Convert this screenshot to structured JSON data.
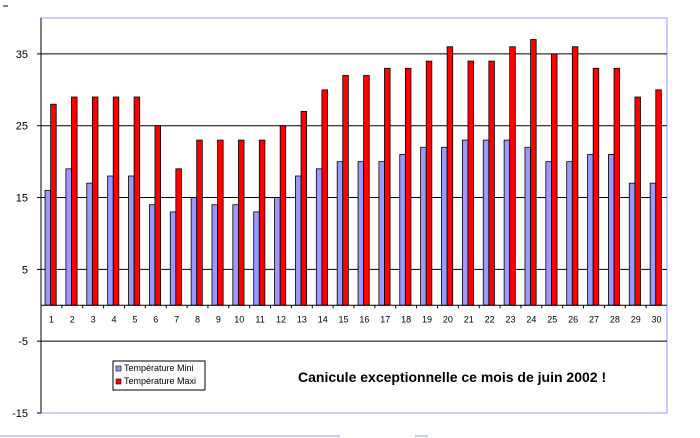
{
  "chart_data": {
    "type": "bar",
    "title": "",
    "xlabel": "",
    "ylabel": "",
    "ylim": [
      -15,
      40
    ],
    "yticks": [
      35,
      25,
      15,
      5,
      -5,
      -15
    ],
    "grid": true,
    "categories": [
      "1",
      "2",
      "3",
      "4",
      "5",
      "6",
      "7",
      "8",
      "9",
      "10",
      "11",
      "12",
      "13",
      "14",
      "15",
      "16",
      "17",
      "18",
      "19",
      "20",
      "21",
      "22",
      "23",
      "24",
      "25",
      "26",
      "27",
      "28",
      "29",
      "30"
    ],
    "series": [
      {
        "name": "Température Mini",
        "color": "#9999ff",
        "values": [
          16,
          19,
          17,
          18,
          18,
          14,
          13,
          15,
          14,
          14,
          13,
          15,
          18,
          19,
          20,
          20,
          20,
          21,
          22,
          22,
          23,
          23,
          23,
          22,
          20,
          20,
          21,
          21,
          17,
          17
        ]
      },
      {
        "name": "Température Maxi",
        "color": "#ff0000",
        "values": [
          28,
          29,
          29,
          29,
          29,
          25,
          19,
          23,
          23,
          23,
          23,
          25,
          27,
          30,
          32,
          32,
          33,
          33,
          34,
          36,
          34,
          34,
          36,
          37,
          35,
          36,
          33,
          33,
          29,
          30
        ]
      }
    ],
    "legend_position": "bottom-left",
    "annotation": "Canicule exceptionnelle ce mois de juin 2002 !"
  }
}
